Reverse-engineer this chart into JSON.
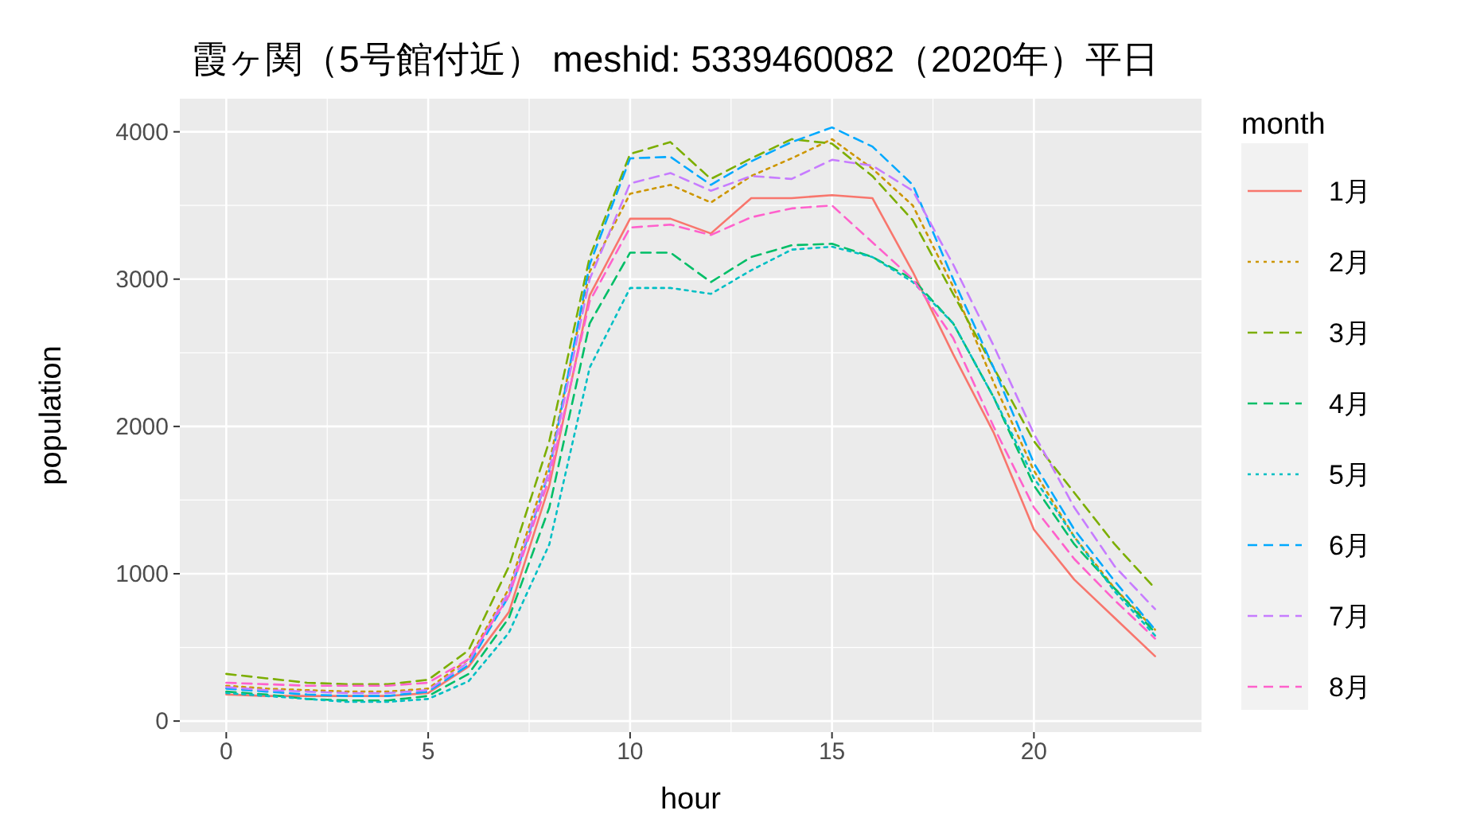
{
  "chart_data": {
    "type": "line",
    "title": "霞ヶ関（5号館付近）  meshid: 5339460082（2020年）平日",
    "xlabel": "hour",
    "ylabel": "population",
    "legend_title": "month",
    "x": [
      0,
      1,
      2,
      3,
      4,
      5,
      6,
      7,
      8,
      9,
      10,
      11,
      12,
      13,
      14,
      15,
      16,
      17,
      18,
      19,
      20,
      21,
      22,
      23
    ],
    "xlim": [
      -1.15,
      24.15
    ],
    "xticks": [
      0,
      5,
      10,
      15,
      20
    ],
    "ylim": [
      -75,
      4225
    ],
    "yticks": [
      0,
      1000,
      2000,
      3000,
      4000
    ],
    "grid": true,
    "legend": "right",
    "series": [
      {
        "name": "1月",
        "color": "#f8766d",
        "line_style": "solid",
        "values": [
          180,
          170,
          170,
          170,
          170,
          190,
          370,
          740,
          1600,
          2890,
          3410,
          3410,
          3310,
          3550,
          3550,
          3570,
          3550,
          3050,
          2490,
          1960,
          1300,
          960,
          700,
          440
        ]
      },
      {
        "name": "2月",
        "color": "#cd9600",
        "line_style": "dotted",
        "values": [
          240,
          220,
          210,
          200,
          200,
          220,
          420,
          900,
          1750,
          3050,
          3580,
          3640,
          3520,
          3700,
          3820,
          3950,
          3750,
          3500,
          2950,
          2300,
          1700,
          1250,
          900,
          620
        ]
      },
      {
        "name": "3月",
        "color": "#7cae00",
        "line_style": "dashed",
        "values": [
          320,
          290,
          260,
          250,
          250,
          280,
          480,
          1050,
          1900,
          3150,
          3850,
          3930,
          3680,
          3820,
          3950,
          3920,
          3700,
          3400,
          2900,
          2400,
          1900,
          1550,
          1200,
          900
        ]
      },
      {
        "name": "4月",
        "color": "#00be67",
        "line_style": "dashed",
        "values": [
          200,
          180,
          150,
          140,
          140,
          170,
          320,
          700,
          1450,
          2700,
          3180,
          3180,
          2980,
          3150,
          3230,
          3240,
          3150,
          3000,
          2700,
          2200,
          1600,
          1200,
          900,
          600
        ]
      },
      {
        "name": "5月",
        "color": "#00bfc4",
        "line_style": "dotted",
        "values": [
          190,
          170,
          150,
          130,
          130,
          150,
          270,
          600,
          1200,
          2400,
          2940,
          2940,
          2900,
          3060,
          3200,
          3220,
          3150,
          2980,
          2700,
          2200,
          1650,
          1250,
          880,
          580
        ]
      },
      {
        "name": "6月",
        "color": "#00a9ff",
        "line_style": "dashed",
        "values": [
          220,
          200,
          180,
          170,
          170,
          200,
          380,
          850,
          1700,
          3100,
          3820,
          3830,
          3640,
          3800,
          3930,
          4030,
          3900,
          3640,
          3000,
          2400,
          1750,
          1300,
          950,
          620
        ]
      },
      {
        "name": "7月",
        "color": "#c77cff",
        "line_style": "dashed",
        "values": [
          230,
          210,
          200,
          190,
          190,
          210,
          400,
          880,
          1700,
          3000,
          3650,
          3720,
          3600,
          3700,
          3680,
          3810,
          3770,
          3600,
          3100,
          2550,
          1950,
          1450,
          1050,
          760
        ]
      },
      {
        "name": "8月",
        "color": "#ff61cc",
        "line_style": "dashed",
        "values": [
          260,
          250,
          240,
          240,
          240,
          260,
          420,
          850,
          1650,
          2850,
          3350,
          3370,
          3300,
          3420,
          3480,
          3500,
          3250,
          3000,
          2600,
          2000,
          1450,
          1100,
          820,
          560
        ]
      }
    ]
  }
}
